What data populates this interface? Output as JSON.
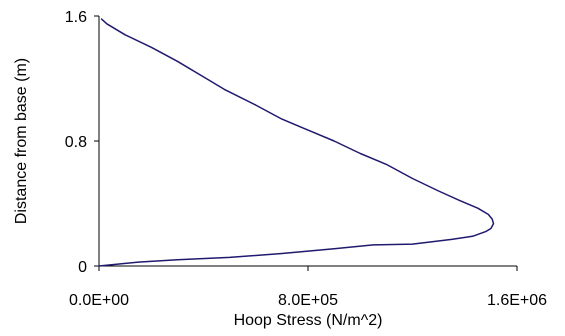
{
  "chart_data": {
    "type": "line",
    "title": "",
    "xlabel": "Hoop Stress (N/m^2)",
    "ylabel": "Distance from base (m)",
    "xlim": [
      0,
      1600000
    ],
    "ylim": [
      0,
      1.6
    ],
    "x_ticks": [
      0,
      800000,
      1600000
    ],
    "x_tick_labels": [
      "0.0E+00",
      "8.0E+05",
      "1.6E+06"
    ],
    "y_ticks": [
      0,
      0.8,
      1.6
    ],
    "y_tick_labels": [
      "0",
      "0.8",
      "1.6"
    ],
    "grid": false,
    "legend": "none",
    "line_color": "#1f1a6e",
    "series": [
      {
        "x": [
          0,
          150000,
          300000,
          500000,
          700000,
          900000,
          1050000,
          1200000,
          1350000,
          1430000,
          1480000,
          1500000,
          1510000,
          1505000,
          1490000,
          1450000,
          1380000,
          1300000,
          1200000,
          1100000,
          1000000,
          900000,
          800000,
          700000,
          600000,
          480000,
          400000,
          300000,
          200000,
          100000,
          30000,
          10000
        ],
        "y": [
          0,
          0.025,
          0.04,
          0.055,
          0.08,
          0.11,
          0.135,
          0.14,
          0.17,
          0.19,
          0.22,
          0.24,
          0.27,
          0.3,
          0.33,
          0.37,
          0.42,
          0.48,
          0.56,
          0.65,
          0.72,
          0.8,
          0.87,
          0.94,
          1.03,
          1.13,
          1.21,
          1.31,
          1.4,
          1.48,
          1.55,
          1.58
        ]
      }
    ]
  }
}
